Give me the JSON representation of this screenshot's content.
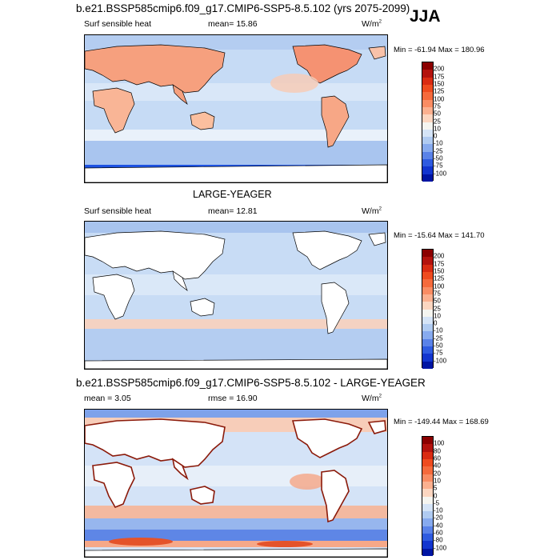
{
  "header": {
    "case_title": "b.e21.BSSP585cmip6.f09_g17.CMIP6-SSP5-8.5.102 (yrs 2075-2099)",
    "season": "JJA"
  },
  "panels": [
    {
      "id": "case",
      "title": "",
      "variable": "Surf sensible heat",
      "stat": "mean=  15.86",
      "units": "W/m",
      "units_sup": "2",
      "minmax": "Min = -61.94 Max = 180.96",
      "colorbar": [
        "200",
        "175",
        "150",
        "125",
        "100",
        "75",
        "50",
        "25",
        "10",
        "0",
        "-10",
        "-25",
        "-50",
        "-75",
        "-100"
      ],
      "colors": [
        "#8b0000",
        "#b3120d",
        "#d92b12",
        "#ee4b1f",
        "#f56a3c",
        "#f98c63",
        "#fbb08f",
        "#fcd6c0",
        "#f5f5f0",
        "#d5e4f7",
        "#b0cbf1",
        "#87aaee",
        "#5a82e8",
        "#2f5be0",
        "#1235cf",
        "#0015a3"
      ]
    },
    {
      "id": "reference",
      "title": "LARGE-YEAGER",
      "variable": "Surf sensible heat",
      "stat": "mean=  12.81",
      "units": "W/m",
      "units_sup": "2",
      "minmax": "Min = -15.64 Max = 141.70",
      "colorbar": [
        "200",
        "175",
        "150",
        "125",
        "100",
        "75",
        "50",
        "25",
        "10",
        "0",
        "-10",
        "-25",
        "-50",
        "-75",
        "-100"
      ],
      "colors": [
        "#8b0000",
        "#b3120d",
        "#d92b12",
        "#ee4b1f",
        "#f56a3c",
        "#f98c63",
        "#fbb08f",
        "#fcd6c0",
        "#f5f5f0",
        "#d5e4f7",
        "#b0cbf1",
        "#87aaee",
        "#5a82e8",
        "#2f5be0",
        "#1235cf",
        "#0015a3"
      ]
    },
    {
      "id": "difference",
      "title": "b.e21.BSSP585cmip6.f09_g17.CMIP6-SSP5-8.5.102 - LARGE-YEAGER",
      "variable": "mean =   3.05",
      "stat": "rmse =  16.90",
      "units": "W/m",
      "units_sup": "2",
      "minmax": "Min = -149.44 Max = 168.69",
      "colorbar": [
        "100",
        "80",
        "60",
        "40",
        "20",
        "10",
        "5",
        "0",
        "-5",
        "-10",
        "-20",
        "-40",
        "-60",
        "-80",
        "-100"
      ],
      "colors": [
        "#8b0000",
        "#b3120d",
        "#d92b12",
        "#ee4b1f",
        "#f56a3c",
        "#f98c63",
        "#fbb08f",
        "#fcd6c0",
        "#f5f5f0",
        "#d5e4f7",
        "#b0cbf1",
        "#87aaee",
        "#5a82e8",
        "#2f5be0",
        "#1235cf",
        "#0015a3"
      ]
    }
  ]
}
